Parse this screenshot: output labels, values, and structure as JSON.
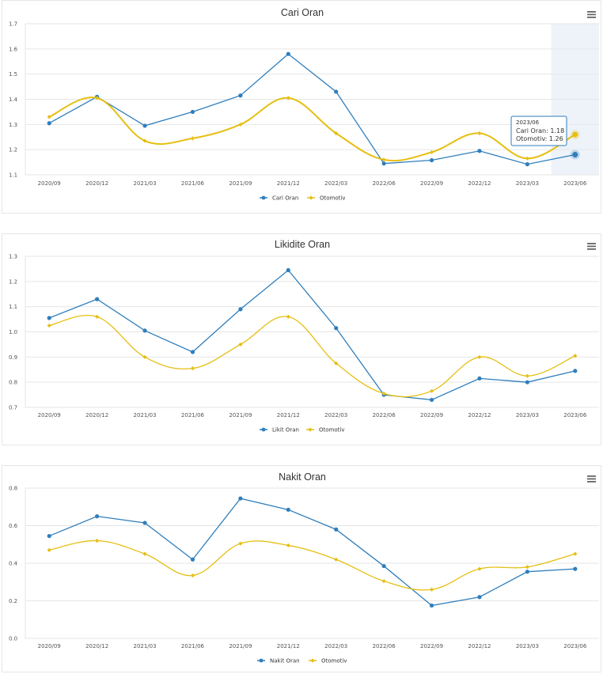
{
  "colors": {
    "series1": "#2f7ebc",
    "series2": "#e6bf12",
    "grid": "#e6e6e6",
    "highlight": "#eef3fa",
    "tooltip_border": "#2f7ebc",
    "menu_icon": "#666666"
  },
  "icons": {
    "menu": "hamburger-menu-icon"
  },
  "chart_data": [
    {
      "type": "line",
      "title": "Cari Oran",
      "categories": [
        "2020/09",
        "2020/12",
        "2021/03",
        "2021/06",
        "2021/09",
        "2021/12",
        "2022/03",
        "2022/06",
        "2022/09",
        "2022/12",
        "2023/03",
        "2023/06"
      ],
      "ylim": [
        1.1,
        1.7
      ],
      "yticks": [
        "1.1",
        "1.2",
        "1.3",
        "1.4",
        "1.5",
        "1.6",
        "1.7"
      ],
      "series": [
        {
          "name": "Cari Oran",
          "values": [
            1.305,
            1.41,
            1.295,
            1.35,
            1.415,
            1.58,
            1.43,
            1.145,
            1.158,
            1.195,
            1.142,
            1.18
          ]
        },
        {
          "name": "Otomotiv",
          "values": [
            1.33,
            1.405,
            1.235,
            1.245,
            1.3,
            1.405,
            1.265,
            1.16,
            1.19,
            1.265,
            1.165,
            1.26
          ]
        }
      ],
      "highlight_index": 11,
      "tooltip": {
        "category": "2023/06",
        "line1": "Cari Oran: 1.18",
        "line2": "Otomotiv: 1.26"
      }
    },
    {
      "type": "line",
      "title": "Likidite Oran",
      "categories": [
        "2020/09",
        "2020/12",
        "2021/03",
        "2021/06",
        "2021/09",
        "2021/12",
        "2022/03",
        "2022/06",
        "2022/09",
        "2022/12",
        "2023/03",
        "2023/06"
      ],
      "ylim": [
        0.7,
        1.3
      ],
      "yticks": [
        "0.7",
        "0.8",
        "0.9",
        "1.0",
        "1.1",
        "1.2",
        "1.3"
      ],
      "series": [
        {
          "name": "Likit Oran",
          "values": [
            1.055,
            1.13,
            1.005,
            0.92,
            1.09,
            1.245,
            1.015,
            0.75,
            0.73,
            0.815,
            0.8,
            0.845
          ]
        },
        {
          "name": "Otomotiv",
          "values": [
            1.025,
            1.06,
            0.9,
            0.855,
            0.95,
            1.06,
            0.875,
            0.755,
            0.765,
            0.9,
            0.825,
            0.905
          ]
        }
      ]
    },
    {
      "type": "line",
      "title": "Nakit Oran",
      "categories": [
        "2020/09",
        "2020/12",
        "2021/03",
        "2021/06",
        "2021/09",
        "2021/12",
        "2022/03",
        "2022/06",
        "2022/09",
        "2022/12",
        "2023/03",
        "2023/06"
      ],
      "ylim": [
        0.0,
        0.8
      ],
      "yticks": [
        "0.0",
        "0.2",
        "0.4",
        "0.6",
        "0.8"
      ],
      "series": [
        {
          "name": "Nakit Oran",
          "values": [
            0.545,
            0.65,
            0.615,
            0.42,
            0.745,
            0.685,
            0.58,
            0.385,
            0.175,
            0.22,
            0.355,
            0.37
          ]
        },
        {
          "name": "Otomotiv",
          "values": [
            0.47,
            0.52,
            0.45,
            0.335,
            0.505,
            0.495,
            0.42,
            0.305,
            0.26,
            0.37,
            0.38,
            0.45
          ]
        }
      ]
    }
  ]
}
